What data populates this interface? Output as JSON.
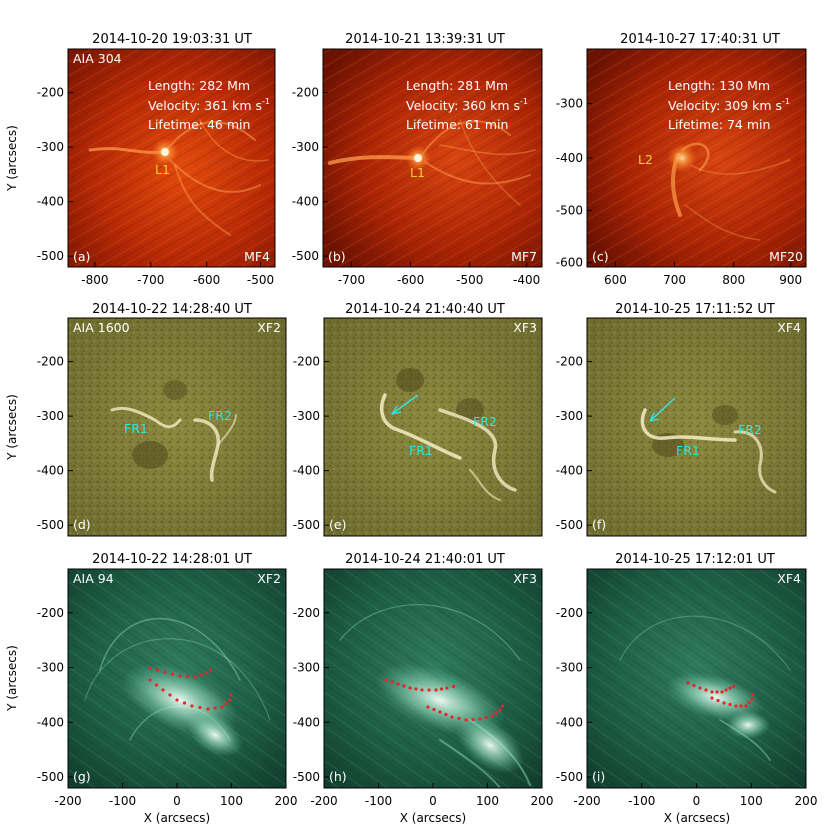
{
  "figure": {
    "rows": [
      {
        "instrument": "AIA 304",
        "panels": [
          {
            "id": "a",
            "title": "2014-10-20 19:03:31 UT",
            "letter": "(a)",
            "event": "MF4",
            "stats": {
              "length": "Length:  282 Mm",
              "velocity": "Velocity: 361 km s",
              "lifetime": "Lifetime: 46 min"
            },
            "markers": [
              {
                "text": "L1"
              }
            ],
            "xticks": [
              "-800",
              "-700",
              "-600",
              "-500"
            ],
            "yticks": [
              "-200",
              "-300",
              "-400",
              "-500"
            ]
          },
          {
            "id": "b",
            "title": "2014-10-21 13:39:31 UT",
            "letter": "(b)",
            "event": "MF7",
            "stats": {
              "length": "Length:  281 Mm",
              "velocity": "Velocity: 360 km s",
              "lifetime": "Lifetime: 61 min"
            },
            "markers": [
              {
                "text": "L1"
              }
            ],
            "xticks": [
              "-700",
              "-600",
              "-500",
              "-400"
            ],
            "yticks": [
              "-200",
              "-300",
              "-400",
              "-500"
            ]
          },
          {
            "id": "c",
            "title": "2014-10-27 17:40:31 UT",
            "letter": "(c)",
            "event": "MF20",
            "stats": {
              "length": "Length:  130 Mm",
              "velocity": "Velocity: 309 km s",
              "lifetime": "Lifetime: 74 min"
            },
            "markers": [
              {
                "text": "L2"
              }
            ],
            "xticks": [
              "600",
              "700",
              "800",
              "900"
            ],
            "yticks": [
              "-300",
              "-400",
              "-500",
              "-600"
            ]
          }
        ]
      },
      {
        "instrument": "AIA 1600",
        "panels": [
          {
            "id": "d",
            "title": "2014-10-22 14:28:40 UT",
            "letter": "(d)",
            "event": "XF2",
            "markers": [
              {
                "text": "FR1"
              },
              {
                "text": "FR2"
              }
            ],
            "yticks": [
              "-200",
              "-300",
              "-400",
              "-500"
            ]
          },
          {
            "id": "e",
            "title": "2014-10-24 21:40:40 UT",
            "letter": "(e)",
            "event": "XF3",
            "markers": [
              {
                "text": "FR1"
              },
              {
                "text": "FR2"
              }
            ],
            "yticks": [
              "-200",
              "-300",
              "-400",
              "-500"
            ]
          },
          {
            "id": "f",
            "title": "2014-10-25 17:11:52 UT",
            "letter": "(f)",
            "event": "XF4",
            "markers": [
              {
                "text": "FR1"
              },
              {
                "text": "FR2"
              }
            ],
            "yticks": [
              "-200",
              "-300",
              "-400",
              "-500"
            ]
          }
        ]
      },
      {
        "instrument": "AIA 94",
        "panels": [
          {
            "id": "g",
            "title": "2014-10-22 14:28:01 UT",
            "letter": "(g)",
            "event": "XF2",
            "xticks": [
              "-200",
              "-100",
              "0",
              "100",
              "200"
            ],
            "yticks": [
              "-200",
              "-300",
              "-400",
              "-500"
            ]
          },
          {
            "id": "h",
            "title": "2014-10-24 21:40:01 UT",
            "letter": "(h)",
            "event": "XF3",
            "xticks": [
              "-200",
              "-100",
              "0",
              "100",
              "200"
            ],
            "yticks": [
              "-200",
              "-300",
              "-400",
              "-500"
            ]
          },
          {
            "id": "i",
            "title": "2014-10-25 17:12:01 UT",
            "letter": "(i)",
            "event": "XF4",
            "xticks": [
              "-200",
              "-100",
              "0",
              "100",
              "200"
            ],
            "yticks": [
              "-200",
              "-300",
              "-400",
              "-500"
            ]
          }
        ]
      }
    ],
    "velocity_exponent": "-1",
    "y_axis_title": "Y (arcsecs)",
    "x_axis_title": "X (arcsecs)",
    "colors": {
      "aia304_base": "#b82a06",
      "aia1600_base": "#7d7a35",
      "aia94_base": "#184f3b",
      "label_yellow": "#f2d12e",
      "arrow_cyan": "#2ee6e6",
      "dots_red": "#e3272b"
    }
  }
}
